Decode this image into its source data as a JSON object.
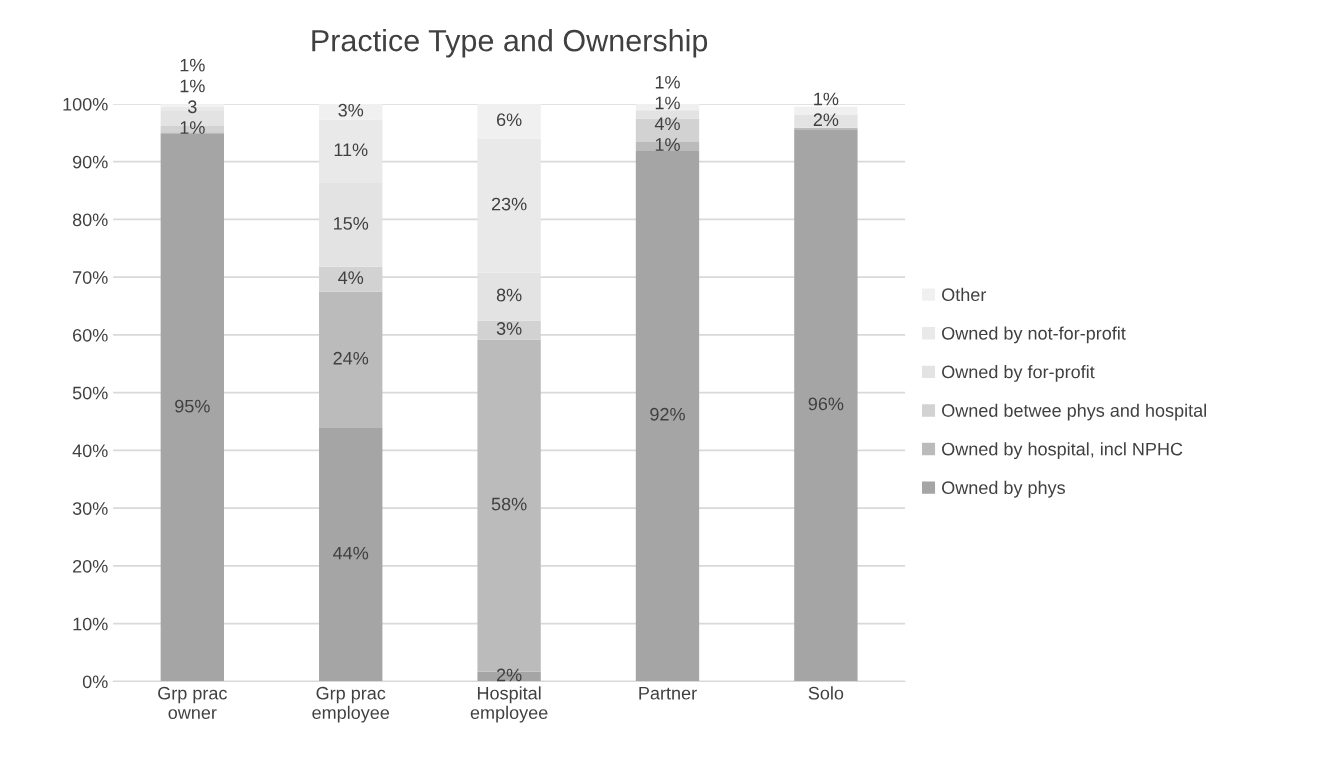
{
  "chart_data": {
    "type": "bar",
    "title": "Practice Type and Ownership",
    "stacked": true,
    "categories": [
      "Grp prac owner",
      "Grp prac employee",
      "Hospital employee",
      "Partner",
      "Solo"
    ],
    "series": [
      {
        "name": "Owned by phys",
        "color": "#a5a5a5",
        "values": [
          94.8,
          43.9,
          1.7,
          92.0,
          95.6
        ],
        "value_labels": [
          "95%",
          "44%",
          "2%",
          "92%",
          "96%"
        ]
      },
      {
        "name": "Owned by hospital, incl NPHC",
        "color": "#bbbbbb",
        "values": [
          0.3,
          23.6,
          57.5,
          1.4,
          0.3
        ],
        "value_labels": [
          null,
          "24%",
          "58%",
          "1%",
          null
        ]
      },
      {
        "name": "Owned betwee phys and hospital",
        "color": "#d2d2d2",
        "values": [
          1.1,
          4.3,
          3.3,
          4.1,
          0
        ],
        "value_labels": [
          "1%",
          "4%",
          "3%",
          "4%",
          null
        ]
      },
      {
        "name": "Owned by for-profit",
        "color": "#e3e3e3",
        "values": [
          2.6,
          14.5,
          8.3,
          1.4,
          2.2
        ],
        "value_labels": [
          "3",
          "15%",
          "8%",
          "1%",
          "2%"
        ]
      },
      {
        "name": "Owned by not-for-profit",
        "color": "#e9e9e9",
        "values": [
          0.7,
          11.0,
          23.2,
          0,
          0
        ],
        "value_labels": [
          "1%",
          "11%",
          "23%",
          null,
          null
        ]
      },
      {
        "name": "Other",
        "color": "#f0f0f0",
        "values": [
          0.5,
          2.7,
          6.0,
          1.1,
          1.4
        ],
        "value_labels": [
          "1%",
          "3%",
          "6%",
          "1%",
          "1%"
        ]
      }
    ],
    "ylim": [
      0,
      100
    ],
    "yticks": [
      {
        "value": 0,
        "label": "0%"
      },
      {
        "value": 10,
        "label": "10%"
      },
      {
        "value": 20,
        "label": "20%"
      },
      {
        "value": 30,
        "label": "30%"
      },
      {
        "value": 40,
        "label": "40%"
      },
      {
        "value": 50,
        "label": "50%"
      },
      {
        "value": 60,
        "label": "60%"
      },
      {
        "value": 70,
        "label": "70%"
      },
      {
        "value": 80,
        "label": "80%"
      },
      {
        "value": 90,
        "label": "90%"
      },
      {
        "value": 100,
        "label": "100%"
      }
    ],
    "grid": "y",
    "legend": "right"
  }
}
